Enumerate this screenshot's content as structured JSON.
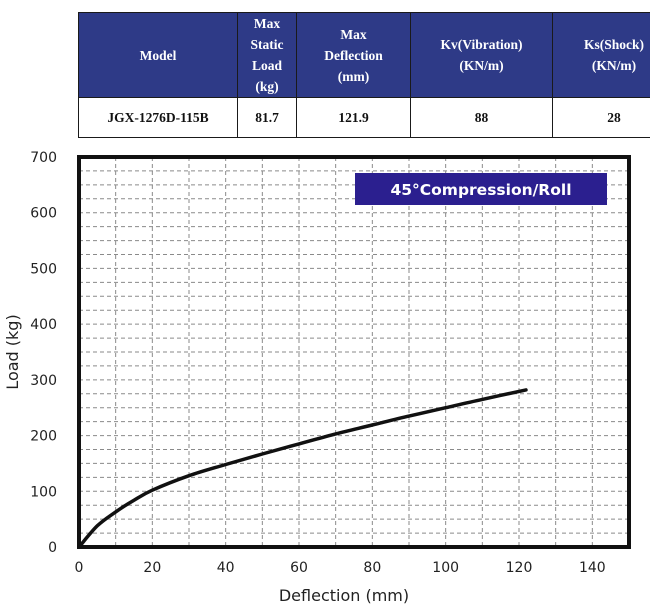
{
  "table": {
    "header_color": "#2e3a87",
    "columns": [
      {
        "key": "model",
        "lines": [
          "Model"
        ]
      },
      {
        "key": "max_static_load",
        "lines": [
          "Max",
          "Static",
          "Load",
          "(kg)"
        ]
      },
      {
        "key": "max_deflection",
        "lines": [
          "Max",
          "Deflection",
          "(mm)"
        ]
      },
      {
        "key": "kv",
        "lines": [
          "Kv(Vibration)",
          "(KN/m)"
        ]
      },
      {
        "key": "ks",
        "lines": [
          "Ks(Shock)",
          "(KN/m)"
        ]
      }
    ],
    "rows": [
      [
        "JGX-1276D-115B",
        "81.7",
        "121.9",
        "88",
        "28"
      ]
    ]
  },
  "chart_data": {
    "type": "line",
    "title": "45°Compression/Roll",
    "title_badge_color": "#2b1f8f",
    "xlabel": "Deflection (mm)",
    "ylabel": "Load (kg)",
    "xlim": [
      0,
      150
    ],
    "ylim": [
      0,
      700
    ],
    "xticks": [
      0,
      20,
      40,
      60,
      80,
      100,
      120,
      140
    ],
    "yticks": [
      0,
      100,
      200,
      300,
      400,
      500,
      600,
      700
    ],
    "grid": true,
    "grid_style": "dashed",
    "series": [
      {
        "color": "#111111",
        "x": [
          0,
          5,
          10,
          15,
          20,
          30,
          40,
          50,
          60,
          70,
          80,
          90,
          100,
          110,
          121.9
        ],
        "y": [
          0,
          38,
          63,
          84,
          102,
          128,
          148,
          167,
          185,
          203,
          219,
          235,
          250,
          265,
          282
        ]
      }
    ]
  }
}
